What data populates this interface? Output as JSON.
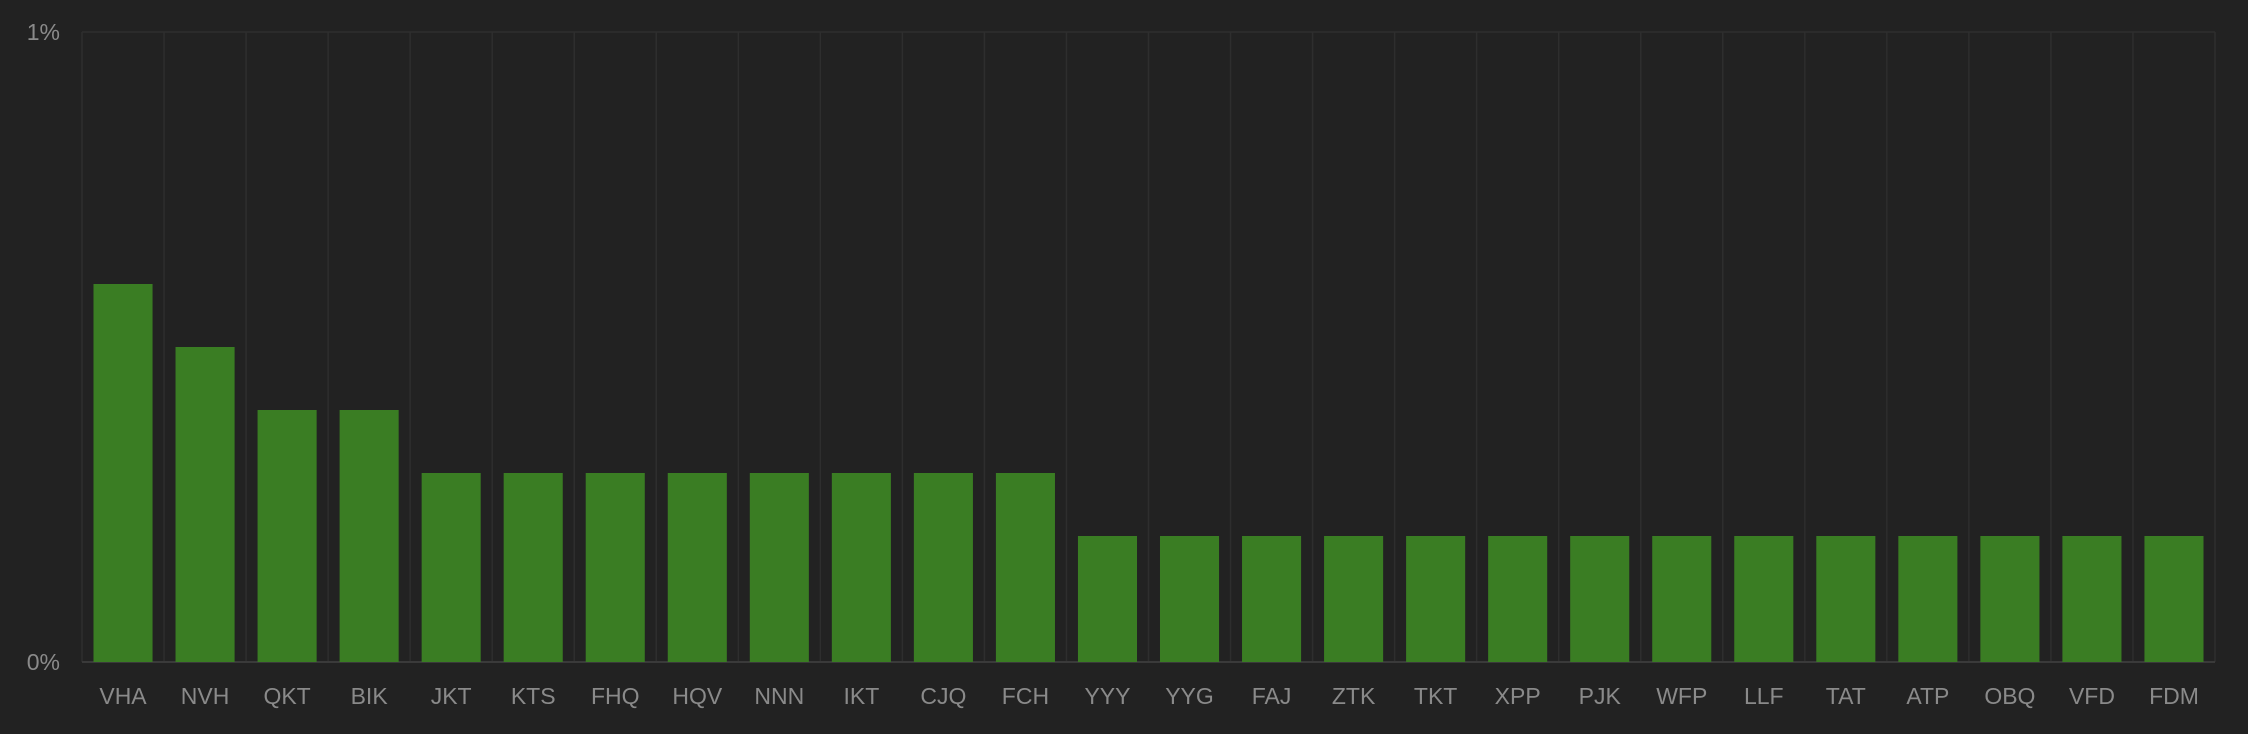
{
  "chart_data": {
    "type": "bar",
    "categories": [
      "VHA",
      "NVH",
      "QKT",
      "BIK",
      "JKT",
      "KTS",
      "FHQ",
      "HQV",
      "NNN",
      "IKT",
      "CJQ",
      "FCH",
      "YYY",
      "YYG",
      "FAJ",
      "ZTK",
      "TKT",
      "XPP",
      "PJK",
      "WFP",
      "LLF",
      "TAT",
      "ATP",
      "OBQ",
      "VFD",
      "FDM"
    ],
    "values": [
      0.6,
      0.5,
      0.4,
      0.4,
      0.3,
      0.3,
      0.3,
      0.3,
      0.3,
      0.3,
      0.3,
      0.3,
      0.2,
      0.2,
      0.2,
      0.2,
      0.2,
      0.2,
      0.2,
      0.2,
      0.2,
      0.2,
      0.2,
      0.2,
      0.2,
      0.2
    ],
    "ylim": [
      0,
      1
    ],
    "yticks": [
      "0%",
      "1%"
    ],
    "grid": true,
    "title": "",
    "xlabel": "",
    "ylabel": "",
    "colors": {
      "background": "#222222",
      "bar": "#3a7d23",
      "grid": "#2e2e2e",
      "text": "#8a8a8a",
      "baseline": "#3a3a3a"
    }
  }
}
